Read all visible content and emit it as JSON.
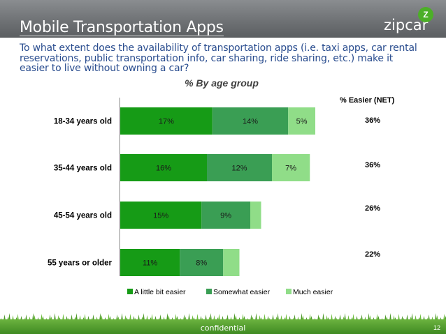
{
  "header": {
    "title": "Mobile Transportation Apps",
    "brand": "zipcar",
    "brand_badge": "Z"
  },
  "question": "To what extent does the availability of transportation apps (i.e. taxi apps, car rental reservations, public transportation info, car sharing, ride sharing, etc.) make it easier to live without owning a car?",
  "subtitle": "% By age group",
  "net_header": "% Easier (NET)",
  "footer": {
    "label": "confidential",
    "page": "12"
  },
  "colors": {
    "little": "#169b16",
    "somewhat": "#3a9e54",
    "much": "#90dd88"
  },
  "chart_data": {
    "type": "bar",
    "orientation": "horizontal",
    "stacked": true,
    "categories": [
      "18-34 years old",
      "35-44 years old",
      "45-54 years old",
      "55 years or older"
    ],
    "series": [
      {
        "name": "A little bit easier",
        "values": [
          17,
          16,
          15,
          11
        ],
        "labels": [
          "17%",
          "16%",
          "15%",
          "11%"
        ]
      },
      {
        "name": "Somewhat easier",
        "values": [
          14,
          12,
          9,
          8
        ],
        "labels": [
          "14%",
          "12%",
          "9%",
          "8%"
        ]
      },
      {
        "name": "Much easier",
        "values": [
          5,
          7,
          2,
          3
        ],
        "labels": [
          "5%",
          "7%",
          "",
          ""
        ]
      }
    ],
    "net_values": [
      "36%",
      "36%",
      "26%",
      "22%"
    ],
    "legend_position": "bottom"
  }
}
